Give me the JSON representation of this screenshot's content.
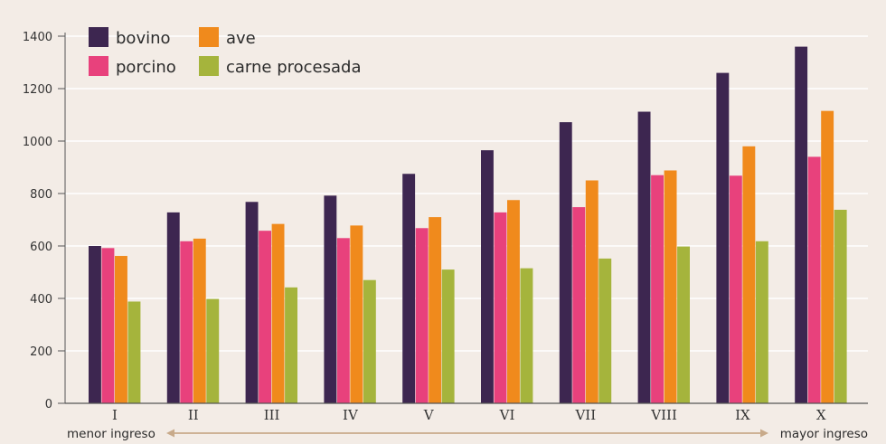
{
  "chart_data": {
    "type": "bar",
    "title": "",
    "xlabel": "",
    "ylabel": "",
    "ylim": [
      0,
      1400
    ],
    "yticks": [
      0,
      200,
      400,
      600,
      800,
      1000,
      1200,
      1400
    ],
    "grid": true,
    "legend_position": "top-left",
    "categories": [
      "I",
      "II",
      "III",
      "IV",
      "V",
      "VI",
      "VII",
      "VIII",
      "IX",
      "X"
    ],
    "series": [
      {
        "name": "bovino",
        "color": "#3d2650",
        "values": [
          600,
          728,
          768,
          792,
          875,
          965,
          1072,
          1112,
          1260,
          1360
        ]
      },
      {
        "name": "porcino",
        "color": "#e8417c",
        "values": [
          592,
          618,
          658,
          630,
          668,
          728,
          748,
          870,
          868,
          940
        ]
      },
      {
        "name": "ave",
        "color": "#f08a1c",
        "values": [
          562,
          628,
          684,
          678,
          710,
          775,
          850,
          888,
          980,
          1115
        ]
      },
      {
        "name": "carne procesada",
        "color": "#a5b43c",
        "values": [
          388,
          398,
          442,
          470,
          510,
          515,
          552,
          598,
          618,
          738
        ]
      }
    ],
    "annotations": {
      "left": "menor ingreso",
      "right": "mayor ingreso"
    },
    "arrow_color": "#c8aa8a"
  }
}
